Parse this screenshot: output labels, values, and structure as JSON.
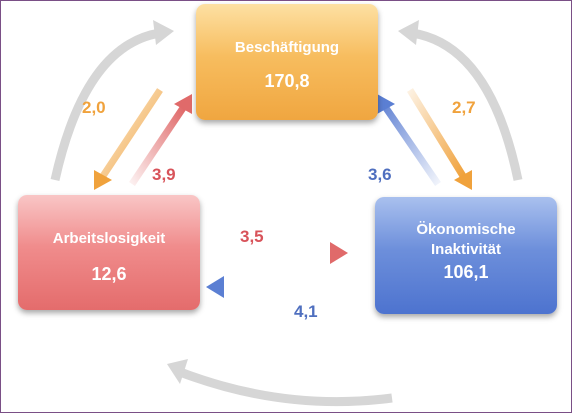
{
  "nodes": {
    "employment": {
      "label": "Beschäftigung",
      "value": "170,8"
    },
    "unemployment": {
      "label": "Arbeitslosigkeit",
      "value": "12,6"
    },
    "inactivity": {
      "label": "Ökonomische\nInaktivität",
      "value": "106,1"
    }
  },
  "flows": {
    "employment_to_unemployment": "2,0",
    "unemployment_to_employment": "3,9",
    "employment_to_inactivity": "2,7",
    "inactivity_to_employment": "3,6",
    "unemployment_to_inactivity": "3,5",
    "inactivity_to_unemployment": "4,1"
  },
  "colors": {
    "employment": "#f2a93f",
    "unemployment": "#e46c6c",
    "inactivity": "#5b7fd3",
    "cycle_arrows": "#d4d4d4",
    "flow_employment": "#f0a23c",
    "flow_unemployment": "#d8535a",
    "flow_inactivity": "#4f6fbf"
  }
}
